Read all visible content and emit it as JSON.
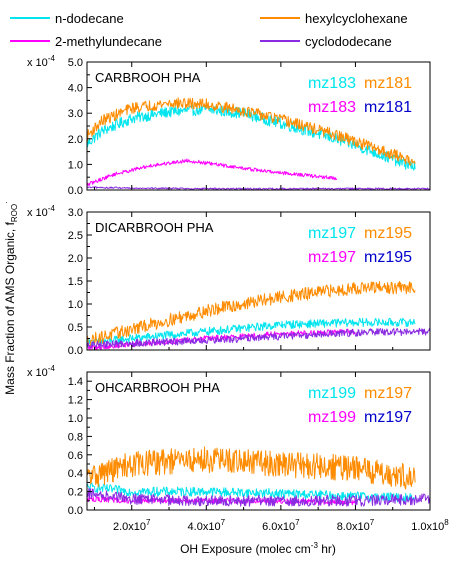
{
  "legend": [
    {
      "label": "n-dodecane",
      "color": "#00E5EE"
    },
    {
      "label": "hexylcyclohexane",
      "color": "#FF8C00"
    },
    {
      "label": "2-methylundecane",
      "color": "#FF00FF"
    },
    {
      "label": "cyclododecane",
      "color": "#8A2BE2"
    }
  ],
  "ylabel_main": "Mass Fraction of AMS Organic, f",
  "ylabel_sub": "ROO",
  "ylabel_sup": "·",
  "xlabel_main": "OH Exposure (molec cm",
  "xlabel_sup": "-3",
  "xlabel_end": " hr)",
  "scale_base": "x 10",
  "scale_exp": "-4",
  "x_ticks": [
    {
      "value": 20000000,
      "base": "2.0x10",
      "exp": "7"
    },
    {
      "value": 40000000,
      "base": "4.0x10",
      "exp": "7"
    },
    {
      "value": 60000000,
      "base": "6.0x10",
      "exp": "7"
    },
    {
      "value": 80000000,
      "base": "8.0x10",
      "exp": "7"
    },
    {
      "value": 100000000,
      "base": "1.0x10",
      "exp": "8"
    }
  ],
  "panels": [
    {
      "title": "CARBROOH PHA",
      "y_ticks": [
        "0.0",
        "1.0",
        "2.0",
        "3.0",
        "4.0",
        "5.0"
      ],
      "mz_labels": [
        {
          "text": "mz183",
          "color": "#00E5EE"
        },
        {
          "text": "mz181",
          "color": "#FF8C00"
        },
        {
          "text": "mz183",
          "color": "#FF00FF"
        },
        {
          "text": "mz181",
          "color": "#0000CC"
        }
      ]
    },
    {
      "title": "DICARBROOH PHA",
      "y_ticks": [
        "0.0",
        "0.5",
        "1.0",
        "1.5",
        "2.0",
        "2.5",
        "3.0"
      ],
      "mz_labels": [
        {
          "text": "mz197",
          "color": "#00E5EE"
        },
        {
          "text": "mz195",
          "color": "#FF8C00"
        },
        {
          "text": "mz197",
          "color": "#FF00FF"
        },
        {
          "text": "mz195",
          "color": "#0000CC"
        }
      ]
    },
    {
      "title": "OHCARBROOH PHA",
      "y_ticks": [
        "0.0",
        "0.2",
        "0.4",
        "0.6",
        "0.8",
        "1.0",
        "1.2",
        "1.4"
      ],
      "mz_labels": [
        {
          "text": "mz199",
          "color": "#00E5EE"
        },
        {
          "text": "mz197",
          "color": "#FF8C00"
        },
        {
          "text": "mz199",
          "color": "#FF00FF"
        },
        {
          "text": "mz197",
          "color": "#0000CC"
        }
      ]
    }
  ],
  "chart_data": [
    {
      "type": "line",
      "title": "CARBROOH PHA",
      "xlabel": "OH Exposure (molec cm-3 hr)",
      "ylabel": "Mass Fraction of AMS Organic, fROO·",
      "y_multiplier": "x 10-4",
      "xlim": [
        8000000,
        100000000
      ],
      "ylim": [
        0,
        5.0
      ],
      "series": [
        {
          "name": "n-dodecane",
          "color": "#00E5EE",
          "noise": 0.22,
          "x": [
            8000000,
            12000000,
            20000000,
            30000000,
            40000000,
            50000000,
            60000000,
            70000000,
            80000000,
            90000000,
            96000000
          ],
          "y": [
            1.8,
            2.3,
            2.8,
            3.05,
            3.15,
            3.0,
            2.6,
            2.2,
            1.75,
            1.2,
            0.9
          ]
        },
        {
          "name": "hexylcyclohexane",
          "color": "#FF8C00",
          "noise": 0.22,
          "x": [
            8000000,
            12000000,
            20000000,
            30000000,
            40000000,
            50000000,
            60000000,
            70000000,
            80000000,
            90000000,
            96000000
          ],
          "y": [
            2.1,
            2.7,
            3.2,
            3.4,
            3.35,
            3.1,
            2.75,
            2.35,
            1.9,
            1.4,
            1.1
          ]
        },
        {
          "name": "2-methylundecane",
          "color": "#FF00FF",
          "noise": 0.07,
          "x": [
            8000000,
            15000000,
            25000000,
            35000000,
            45000000,
            55000000,
            65000000,
            75000000
          ],
          "y": [
            0.2,
            0.6,
            0.95,
            1.15,
            0.95,
            0.75,
            0.6,
            0.45
          ]
        },
        {
          "name": "cyclododecane",
          "color": "#8A2BE2",
          "noise": 0.03,
          "x": [
            8000000,
            20000000,
            40000000,
            60000000,
            80000000,
            100000000
          ],
          "y": [
            0.1,
            0.08,
            0.05,
            0.05,
            0.05,
            0.05
          ]
        }
      ]
    },
    {
      "type": "line",
      "title": "DICARBROOH PHA",
      "xlim": [
        8000000,
        100000000
      ],
      "ylim": [
        0,
        3.0
      ],
      "series": [
        {
          "name": "n-dodecane",
          "color": "#00E5EE",
          "noise": 0.09,
          "x": [
            8000000,
            20000000,
            40000000,
            60000000,
            80000000,
            96000000
          ],
          "y": [
            0.15,
            0.25,
            0.4,
            0.55,
            0.6,
            0.6
          ]
        },
        {
          "name": "hexylcyclohexane",
          "color": "#FF8C00",
          "noise": 0.14,
          "x": [
            8000000,
            20000000,
            40000000,
            60000000,
            80000000,
            96000000
          ],
          "y": [
            0.2,
            0.45,
            0.85,
            1.15,
            1.35,
            1.35
          ]
        },
        {
          "name": "2-methylundecane",
          "color": "#FF00FF",
          "noise": 0.06,
          "x": [
            8000000,
            20000000,
            40000000,
            60000000,
            80000000
          ],
          "y": [
            0.05,
            0.12,
            0.25,
            0.35,
            0.4
          ]
        },
        {
          "name": "cyclododecane",
          "color": "#8A2BE2",
          "noise": 0.08,
          "x": [
            8000000,
            20000000,
            40000000,
            60000000,
            80000000,
            100000000
          ],
          "y": [
            0.1,
            0.15,
            0.2,
            0.3,
            0.38,
            0.4
          ]
        }
      ]
    },
    {
      "type": "line",
      "title": "OHCARBROOH PHA",
      "xlim": [
        8000000,
        100000000
      ],
      "ylim": [
        0,
        1.5
      ],
      "series": [
        {
          "name": "n-dodecane",
          "color": "#00E5EE",
          "noise": 0.05,
          "x": [
            8000000,
            20000000,
            40000000,
            60000000,
            80000000,
            96000000
          ],
          "y": [
            0.25,
            0.2,
            0.2,
            0.18,
            0.15,
            0.13
          ]
        },
        {
          "name": "hexylcyclohexane",
          "color": "#FF8C00",
          "noise": 0.14,
          "x": [
            8000000,
            20000000,
            40000000,
            60000000,
            80000000,
            96000000
          ],
          "y": [
            0.35,
            0.5,
            0.55,
            0.5,
            0.45,
            0.35
          ]
        },
        {
          "name": "2-methylundecane",
          "color": "#FF00FF",
          "noise": 0.03,
          "x": [
            8000000,
            20000000,
            40000000,
            60000000,
            80000000
          ],
          "y": [
            0.12,
            0.1,
            0.1,
            0.1,
            0.08
          ]
        },
        {
          "name": "cyclododecane",
          "color": "#8A2BE2",
          "noise": 0.06,
          "x": [
            8000000,
            20000000,
            40000000,
            60000000,
            80000000,
            100000000
          ],
          "y": [
            0.18,
            0.12,
            0.1,
            0.1,
            0.1,
            0.12
          ]
        }
      ]
    }
  ]
}
